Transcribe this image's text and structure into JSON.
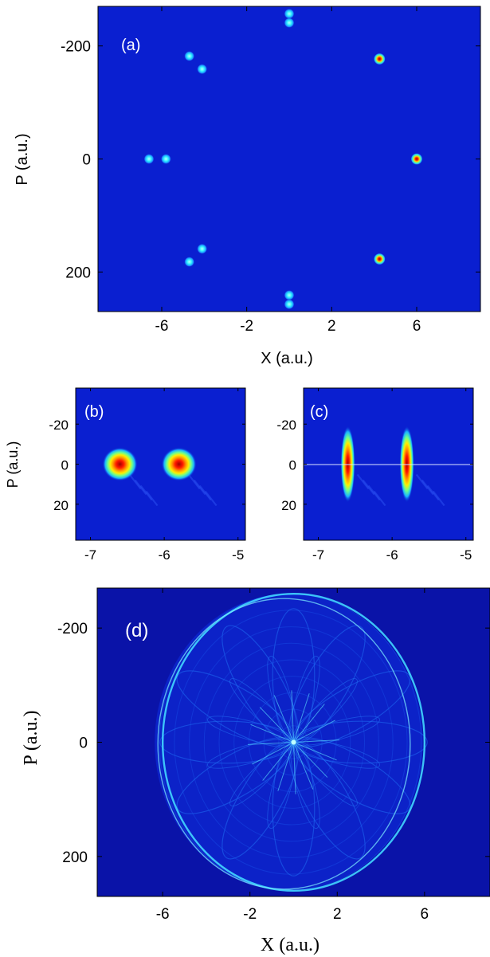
{
  "colors": {
    "background_blue": "#0a1fd0",
    "background_dark": "#0a13a8",
    "spot_red": "#d81010",
    "spot_yellow": "#ffe600",
    "spot_cyan": "#2ef0ff",
    "fringe_cyan": "#41d6ff"
  },
  "chart_data": [
    {
      "panel": "(a)",
      "type": "heatmap",
      "xlabel": "X (a.u.)",
      "ylabel": "P (a.u.)",
      "xlim": [
        -9,
        9
      ],
      "ylim": [
        -270,
        270
      ],
      "y_inverted": true,
      "xticks": [
        "-6",
        "-2",
        "2",
        "6"
      ],
      "xtick_values": [
        -6,
        -2,
        2,
        6
      ],
      "yticks": [
        "-200",
        "0",
        "200"
      ],
      "ytick_values": [
        -200,
        0,
        200
      ],
      "spots": [
        {
          "x": 0,
          "p": -257,
          "amp": 0.45
        },
        {
          "x": 0,
          "p": -241,
          "amp": 0.45
        },
        {
          "x": 4.25,
          "p": -177,
          "amp": 1.0
        },
        {
          "x": 6.0,
          "p": 0,
          "amp": 1.0
        },
        {
          "x": 4.25,
          "p": 177,
          "amp": 1.0
        },
        {
          "x": 0,
          "p": 241,
          "amp": 0.45
        },
        {
          "x": 0,
          "p": 257,
          "amp": 0.45
        },
        {
          "x": -4.1,
          "p": 159,
          "amp": 0.45
        },
        {
          "x": -4.7,
          "p": 182,
          "amp": 0.45
        },
        {
          "x": -5.8,
          "p": 0,
          "amp": 0.45
        },
        {
          "x": -6.6,
          "p": 0,
          "amp": 0.45
        },
        {
          "x": -4.1,
          "p": -159,
          "amp": 0.45
        },
        {
          "x": -4.7,
          "p": -182,
          "amp": 0.45
        }
      ]
    },
    {
      "panel": "(b)",
      "type": "heatmap",
      "xlim": [
        -7.2,
        -4.9
      ],
      "ylim": [
        -38,
        38
      ],
      "y_inverted": true,
      "ylabel": "P (a.u.)",
      "xticks": [
        "-7",
        "-6",
        "-5"
      ],
      "xtick_values": [
        -7,
        -6,
        -5
      ],
      "yticks": [
        "-20",
        "0",
        "20"
      ],
      "ytick_values": [
        -20,
        0,
        20
      ],
      "spots": [
        {
          "x": -6.6,
          "p": 0,
          "amp": 1.0
        },
        {
          "x": -5.8,
          "p": 0,
          "amp": 1.0
        }
      ]
    },
    {
      "panel": "(c)",
      "type": "heatmap",
      "xlim": [
        -7.2,
        -4.9
      ],
      "ylim": [
        -38,
        38
      ],
      "y_inverted": true,
      "xticks": [
        "-7",
        "-6",
        "-5"
      ],
      "xtick_values": [
        -7,
        -6,
        -5
      ],
      "yticks": [
        "-20",
        "0",
        "20"
      ],
      "ytick_values": [
        -20,
        0,
        20
      ],
      "spots": [
        {
          "x": -6.6,
          "p": 0,
          "amp": 1.0
        },
        {
          "x": -5.8,
          "p": 0,
          "amp": 1.0
        }
      ]
    },
    {
      "panel": "(d)",
      "type": "heatmap",
      "xlabel": "X (a.u.)",
      "ylabel": "P (a.u.)",
      "xlim": [
        -9,
        9
      ],
      "ylim": [
        -270,
        270
      ],
      "y_inverted": true,
      "xticks": [
        "-6",
        "-2",
        "2",
        "6"
      ],
      "xtick_values": [
        -6,
        -2,
        2,
        6
      ],
      "yticks": [
        "-200",
        "0",
        "200"
      ],
      "ytick_values": [
        -200,
        0,
        200
      ],
      "ring": {
        "center_x": 0,
        "center_p": 0,
        "radius_x": 6,
        "radius_p": 260
      }
    }
  ]
}
